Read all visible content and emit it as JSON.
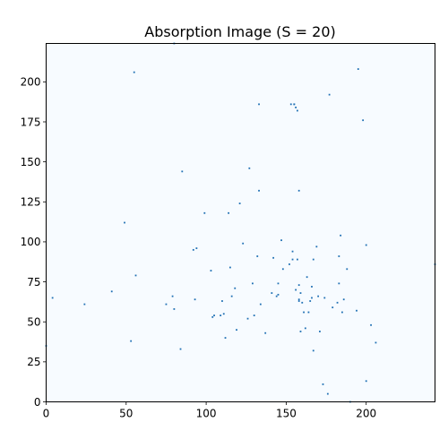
{
  "chart_data": {
    "type": "scatter",
    "title": "Absorption Image (S = 20)",
    "xlabel": "",
    "ylabel": "",
    "xlim": [
      0,
      243
    ],
    "ylim": [
      0,
      224
    ],
    "grid": false,
    "background_color": "#f7fbff",
    "point_color": "#2070b4",
    "xticks": [
      0,
      50,
      100,
      150,
      200
    ],
    "yticks": [
      0,
      25,
      50,
      75,
      100,
      125,
      150,
      175,
      200
    ],
    "x": [
      0,
      4,
      24,
      41,
      49,
      53,
      55,
      56,
      75,
      79,
      80,
      80,
      84,
      85,
      92,
      93,
      94,
      99,
      103,
      104,
      105,
      109,
      110,
      111,
      112,
      114,
      115,
      116,
      118,
      119,
      121,
      123,
      126,
      127,
      129,
      130,
      132,
      133,
      133,
      134,
      137,
      141,
      142,
      144,
      145,
      145,
      147,
      148,
      152,
      153,
      154,
      154,
      155,
      155,
      156,
      156,
      157,
      157,
      158,
      158,
      158,
      158,
      159,
      159,
      160,
      161,
      162,
      163,
      164,
      165,
      166,
      166,
      167,
      167,
      169,
      170,
      171,
      173,
      174,
      176,
      177,
      179,
      182,
      183,
      183,
      184,
      185,
      186,
      188,
      190,
      194,
      195,
      198,
      200,
      200,
      203,
      206,
      243
    ],
    "y": [
      35,
      65,
      61,
      69,
      112,
      38,
      206,
      79,
      61,
      66,
      58,
      224,
      33,
      144,
      95,
      64,
      96,
      118,
      82,
      53,
      54,
      54,
      63,
      55,
      40,
      118,
      84,
      66,
      71,
      45,
      124,
      99,
      52,
      146,
      74,
      54,
      91,
      132,
      186,
      61,
      43,
      68,
      90,
      66,
      74,
      67,
      101,
      83,
      86,
      186,
      94,
      89,
      186,
      186,
      184,
      70,
      182,
      89,
      73,
      63,
      64,
      132,
      68,
      44,
      62,
      56,
      46,
      78,
      56,
      63,
      72,
      65,
      32,
      89,
      97,
      66,
      44,
      11,
      65,
      5,
      192,
      59,
      62,
      91,
      74,
      104,
      56,
      64,
      83,
      0,
      57,
      208,
      176,
      98,
      13,
      48,
      37,
      86
    ]
  }
}
